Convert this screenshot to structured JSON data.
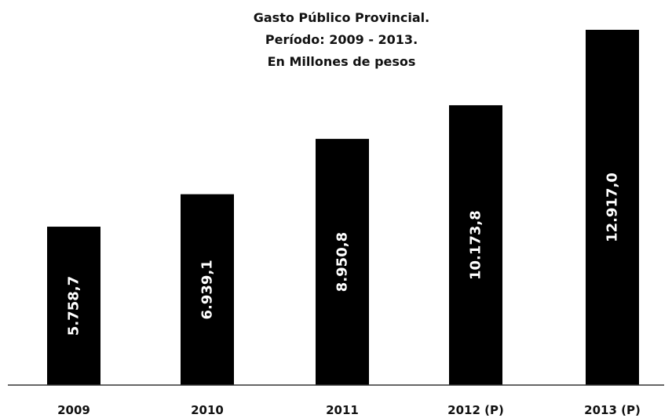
{
  "chart_data": {
    "type": "bar",
    "title": [
      "Gasto Público Provincial.",
      "Período: 2009 - 2013.",
      "En Millones de pesos"
    ],
    "categories": [
      "2009",
      "2010",
      "2011",
      "2012 (P)",
      "2013 (P)"
    ],
    "values": [
      5758.7,
      6939.1,
      8950.8,
      10173.8,
      12917.0
    ],
    "value_labels": [
      "5.758,7",
      "6.939,1",
      "8.950,8",
      "10.173,8",
      "12.917,0"
    ],
    "ylim": [
      0,
      13000
    ],
    "grid": false,
    "legend": "none",
    "bar_color": "#000000",
    "label_color": "#ffffff",
    "label_orientation": "vertical"
  }
}
